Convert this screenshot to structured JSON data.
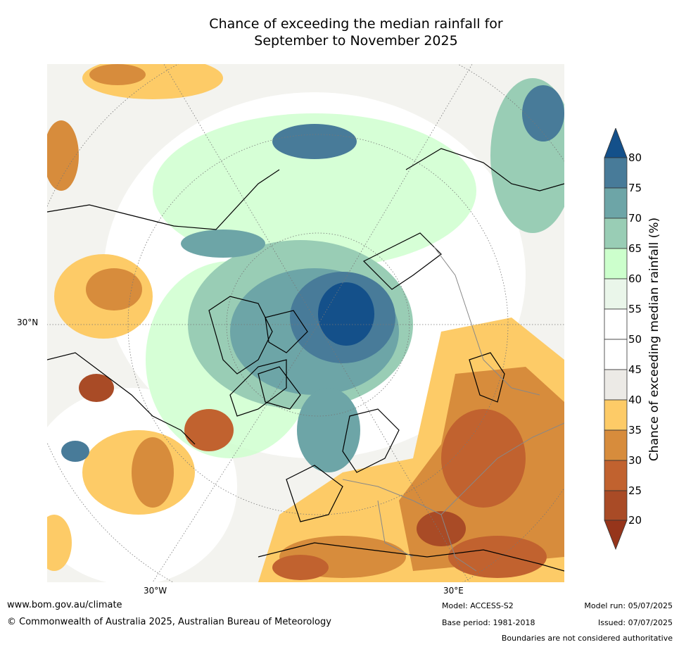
{
  "title_line1": "Chance of exceeding the median rainfall for",
  "title_line2": "September to November 2025",
  "map": {
    "projection": "north-polar-stereographic",
    "lat_label": "30°N",
    "lon_labels": [
      "30°W",
      "30°E"
    ]
  },
  "colorbar": {
    "title": "Chance of exceeding median rainfall (%)",
    "ticks": [
      "20",
      "25",
      "30",
      "35",
      "40",
      "45",
      "50",
      "55",
      "60",
      "65",
      "70",
      "75",
      "80"
    ],
    "bins": [
      {
        "range": "<20",
        "color": "#96351b"
      },
      {
        "range": "20-25",
        "color": "#a94b26"
      },
      {
        "range": "25-30",
        "color": "#c1622f"
      },
      {
        "range": "30-35",
        "color": "#d78c3c"
      },
      {
        "range": "35-40",
        "color": "#fdcb67"
      },
      {
        "range": "40-45",
        "color": "#eceae6"
      },
      {
        "range": "45-50",
        "color": "#ffffff"
      },
      {
        "range": "50-55",
        "color": "#ffffff"
      },
      {
        "range": "55-60",
        "color": "#eaf6ea"
      },
      {
        "range": "60-65",
        "color": "#ccffcc"
      },
      {
        "range": "65-70",
        "color": "#99cdb5"
      },
      {
        "range": "70-75",
        "color": "#6da5a7"
      },
      {
        "range": "75-80",
        "color": "#487b99"
      },
      {
        "range": ">80",
        "color": "#14508a"
      }
    ]
  },
  "footer": {
    "website": "www.bom.gov.au/climate",
    "copyright": "© Commonwealth of Australia 2025, Australian Bureau of Meteorology",
    "model": "Model: ACCESS-S2",
    "base_period": "Base period: 1981-2018",
    "model_run": "Model run: 05/07/2025",
    "issued": "Issued: 07/07/2025",
    "disclaimer": "Boundaries are not considered authoritative"
  }
}
